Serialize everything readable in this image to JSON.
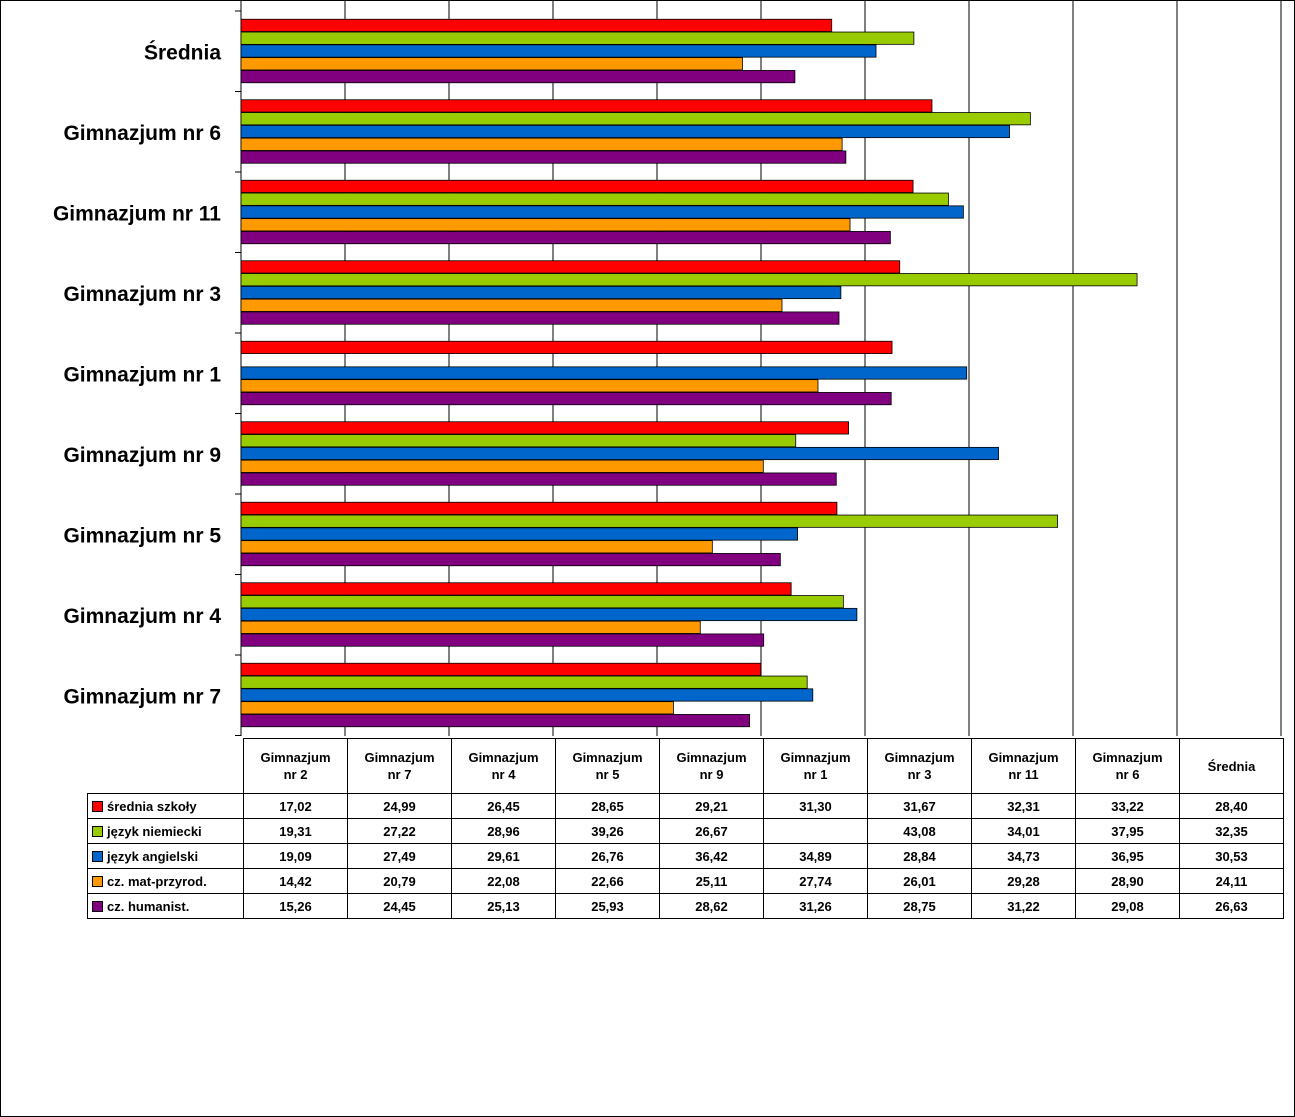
{
  "chart_data": {
    "type": "bar",
    "orientation": "horizontal",
    "categories": [
      "Gimnazjum nr 2",
      "Gimnazjum nr 7",
      "Gimnazjum nr 4",
      "Gimnazjum nr 5",
      "Gimnazjum nr 9",
      "Gimnazjum nr 1",
      "Gimnazjum nr 3",
      "Gimnazjum nr 11",
      "Gimnazjum nr 6",
      "Średnia"
    ],
    "table_headers": [
      [
        "Gimnazjum",
        "nr 2"
      ],
      [
        "Gimnazjum",
        "nr 7"
      ],
      [
        "Gimnazjum",
        "nr 4"
      ],
      [
        "Gimnazjum",
        "nr 5"
      ],
      [
        "Gimnazjum",
        "nr 9"
      ],
      [
        "Gimnazjum",
        "nr 1"
      ],
      [
        "Gimnazjum",
        "nr 3"
      ],
      [
        "Gimnazjum",
        "nr 11"
      ],
      [
        "Gimnazjum",
        "nr 6"
      ],
      [
        "Średnia",
        ""
      ]
    ],
    "series": [
      {
        "name": "średnia szkoły",
        "color": "#ff0000",
        "values": [
          17.02,
          24.99,
          26.45,
          28.65,
          29.21,
          31.3,
          31.67,
          32.31,
          33.22,
          28.4
        ],
        "labels": [
          "17,02",
          "24,99",
          "26,45",
          "28,65",
          "29,21",
          "31,30",
          "31,67",
          "32,31",
          "33,22",
          "28,40"
        ]
      },
      {
        "name": "język niemiecki",
        "color": "#99cc00",
        "values": [
          19.31,
          27.22,
          28.96,
          39.26,
          26.67,
          null,
          43.08,
          34.01,
          37.95,
          32.35
        ],
        "labels": [
          "19,31",
          "27,22",
          "28,96",
          "39,26",
          "26,67",
          "",
          "43,08",
          "34,01",
          "37,95",
          "32,35"
        ]
      },
      {
        "name": "język angielski",
        "color": "#0066cc",
        "values": [
          19.09,
          27.49,
          29.61,
          26.76,
          36.42,
          34.89,
          28.84,
          34.73,
          36.95,
          30.53
        ],
        "labels": [
          "19,09",
          "27,49",
          "29,61",
          "26,76",
          "36,42",
          "34,89",
          "28,84",
          "34,73",
          "36,95",
          "30,53"
        ]
      },
      {
        "name": "cz. mat-przyrod.",
        "color": "#ff9900",
        "values": [
          14.42,
          20.79,
          22.08,
          22.66,
          25.11,
          27.74,
          26.01,
          29.28,
          28.9,
          24.11
        ],
        "labels": [
          "14,42",
          "20,79",
          "22,08",
          "22,66",
          "25,11",
          "27,74",
          "26,01",
          "29,28",
          "28,90",
          "24,11"
        ]
      },
      {
        "name": "cz. humanist.",
        "color": "#800080",
        "values": [
          15.26,
          24.45,
          25.13,
          25.93,
          28.62,
          31.26,
          28.75,
          31.22,
          29.08,
          26.63
        ],
        "labels": [
          "15,26",
          "24,45",
          "25,13",
          "25,93",
          "28,62",
          "31,26",
          "28,75",
          "31,22",
          "29,08",
          "26,63"
        ]
      }
    ],
    "xlim": [
      0,
      50
    ],
    "xticks": [
      "0",
      "5",
      "10",
      "15",
      "20",
      "25",
      "30",
      "35",
      "40",
      "45",
      "50"
    ],
    "grid": "vertical",
    "legend": "data table below chart"
  }
}
